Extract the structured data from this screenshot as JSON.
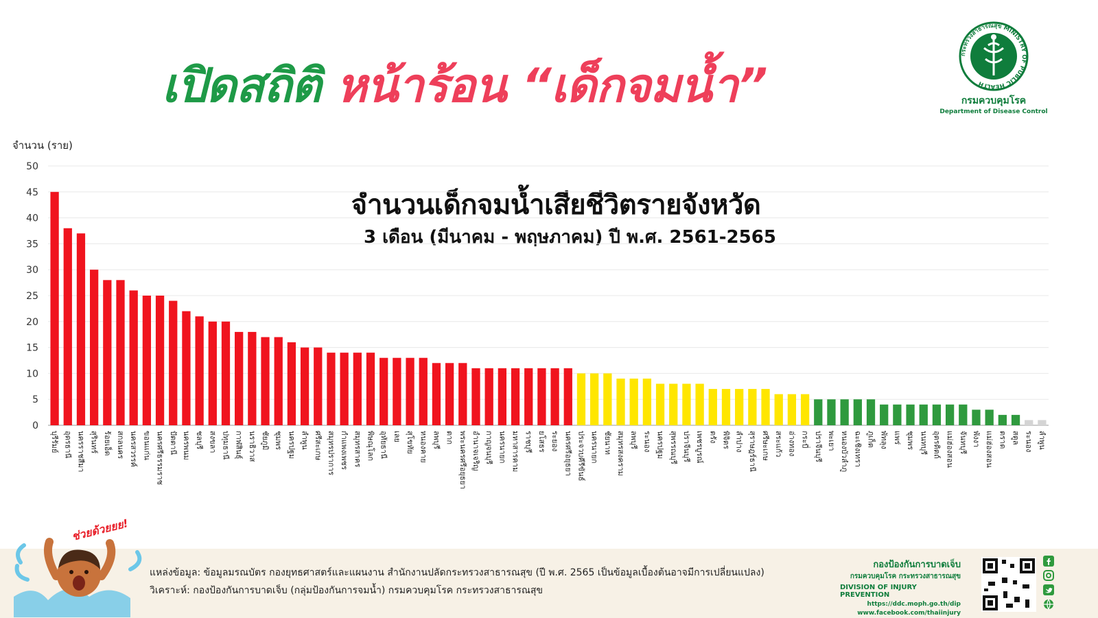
{
  "headline": {
    "part1": "เปิดสถิติ",
    "part2": "หน้าร้อน “เด็กจมน้ำ”"
  },
  "logo": {
    "ring_text": "กระทรวงสาธารณสุข MINISTRY OF PUBLIC HEALTH",
    "name_th": "กรมควบคุมโรค",
    "name_en": "Department of Disease Control"
  },
  "chart_data": {
    "type": "bar",
    "title": "จำนวนเด็กจมน้ำเสียชีวิตรายจังหวัด",
    "subtitle": "3 เดือน (มีนาคม - พฤษภาคม) ปี พ.ศ. 2561-2565",
    "ylabel": "จำนวน (ราย)",
    "ylim": [
      0,
      50
    ],
    "yticks": [
      0,
      5,
      10,
      15,
      20,
      25,
      30,
      35,
      40,
      45,
      50
    ],
    "grid": true,
    "categories": [
      "บุรีรัมย์",
      "อุดรธานี",
      "นครราชสีมา",
      "สุรินทร์",
      "ร้อยเอ็ด",
      "สกลนคร",
      "นครสวรรค์",
      "ขอนแก่น",
      "นครศรีธรรมราช",
      "ปัตตานี",
      "นครพนม",
      "ชลบุรี",
      "สงขลา",
      "ปทุมธานี",
      "กาฬสินธุ์",
      "นราธิวาส",
      "ชัยภูมิ",
      "ชุมพร",
      "นครปฐม",
      "ลำพูน",
      "ศรีสะเกษ",
      "สมุทรปราการ",
      "กำแพงเพชร",
      "สมุทรสาคร",
      "พิษณุโลก",
      "อุทัยธานี",
      "เลย",
      "สุโขทัย",
      "หนองคาย",
      "ลพบุรี",
      "ตาก",
      "พระนครศรีอยุธยา",
      "อำนาจเจริญ",
      "กาญจนบุรี",
      "นครนายก",
      "มหาสารคาม",
      "ราชบุรี",
      "ยโสธร",
      "ระยอง",
      "นครศรีอยุธยา",
      "ประจวบคีรีขันธ์",
      "นครนายก",
      "ชัยนาท",
      "สมุทรสงคราม",
      "ลพบุรี",
      "ระนอง",
      "นครปฐม",
      "สุพรรณบุรี",
      "ปราจีนบุรี",
      "เพชรบูรณ์",
      "ตรัง",
      "พิจิตร",
      "ลำปาง",
      "สุราษฎร์ธานี",
      "ศรีษะเกษ",
      "สระแก้ว",
      "อ่างทอง",
      "กระบี่",
      "ปราจีนบุรี",
      "พะเยา",
      "หนองบัวลำภู",
      "ฉะเชิงเทรา",
      "ภูเก็ต",
      "พัทลุง",
      "แพร่",
      "ชุมพร",
      "นนทบุรี",
      "อุตรดิตถ์",
      "แม่ฮ่องสอน",
      "จันทบุรี",
      "พังงา",
      "แม่ฮ่องสอน",
      "ตราด",
      "สตูล",
      "ระนอง",
      "ลำพูน"
    ],
    "values": [
      45,
      38,
      37,
      30,
      28,
      28,
      26,
      25,
      25,
      24,
      22,
      21,
      20,
      20,
      18,
      18,
      17,
      17,
      16,
      15,
      15,
      14,
      14,
      14,
      14,
      13,
      13,
      13,
      13,
      12,
      12,
      12,
      11,
      11,
      11,
      11,
      11,
      11,
      11,
      11,
      10,
      10,
      10,
      9,
      9,
      9,
      8,
      8,
      8,
      8,
      7,
      7,
      7,
      7,
      7,
      6,
      6,
      6,
      5,
      5,
      5,
      5,
      5,
      4,
      4,
      4,
      4,
      4,
      4,
      4,
      3,
      3,
      2,
      2,
      1,
      1
    ],
    "color_groups": [
      {
        "min": 11,
        "color": "#f0141e"
      },
      {
        "min": 6,
        "color": "#ffe600"
      },
      {
        "min": 2,
        "color": "#2f9a3e"
      },
      {
        "min": 0,
        "color": "#d4d4d4"
      }
    ]
  },
  "footer": {
    "source": "แหล่งข้อมูล: ข้อมูลมรณบัตร กองยุทธศาสตร์และแผนงาน สำนักงานปลัดกระทรวงสาธารณสุข  (ปี พ.ศ. 2565 เป็นข้อมูลเบื้องต้นอาจมีการเปลี่ยนแปลง)",
    "analysis": "วิเคราะห์: กองป้องกันการบาดเจ็บ (กลุ่มป้องกันการจมน้ำ) กรมควบคุมโรค กระทรวงสาธารณสุข",
    "badge": "ช่วยด้วยยย!",
    "division_th1": "กองป้องกันการบาดเจ็บ",
    "division_th2": "กรมควบคุมโรค กระทรวงสาธารณสุข",
    "division_en": "DIVISION OF INJURY PREVENTION",
    "url1": "https://ddc.moph.go.th/dip",
    "url2": "www.facebook.com/thaiinjury"
  }
}
